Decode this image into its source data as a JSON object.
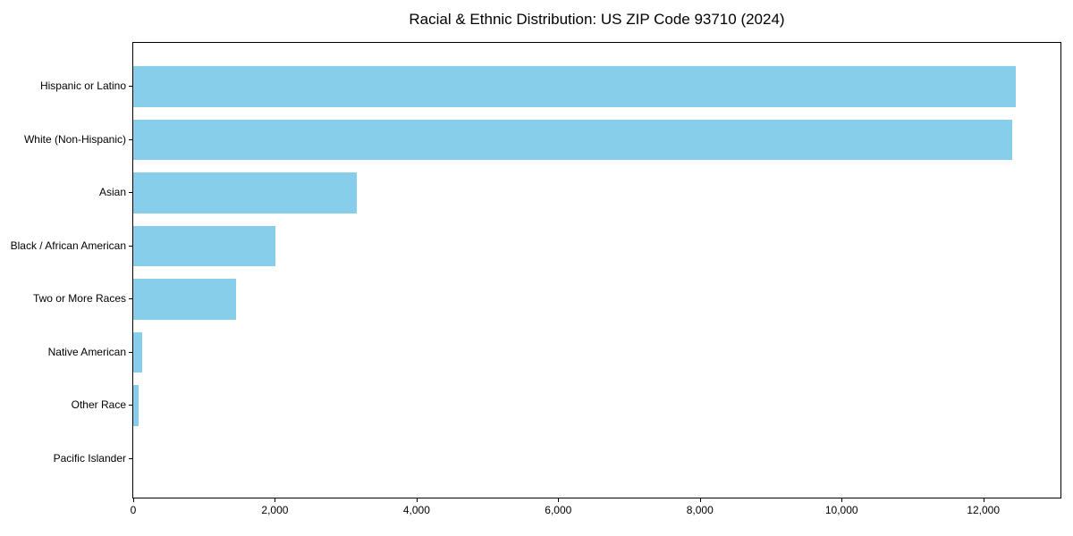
{
  "chart_data": {
    "type": "bar",
    "orientation": "horizontal",
    "title": "Racial & Ethnic Distribution: US ZIP Code 93710 (2024)",
    "categories": [
      "Hispanic or Latino",
      "White (Non-Hispanic)",
      "Asian",
      "Black / African American",
      "Two or More Races",
      "Native American",
      "Other Race",
      "Pacific Islander"
    ],
    "values": [
      12460,
      12405,
      3150,
      2010,
      1450,
      125,
      70,
      0
    ],
    "xlabel": "",
    "ylabel": "",
    "xlim": [
      0,
      13090
    ],
    "x_ticks": [
      0,
      2000,
      4000,
      6000,
      8000,
      10000,
      12000
    ],
    "x_tick_labels": [
      "0",
      "2,000",
      "4,000",
      "6,000",
      "8,000",
      "10,000",
      "12,000"
    ],
    "bar_color": "#87CEEB",
    "axis_color": "#000000",
    "text_color": "#000000",
    "background_color": "#ffffff",
    "grid": false,
    "legend": "none"
  }
}
